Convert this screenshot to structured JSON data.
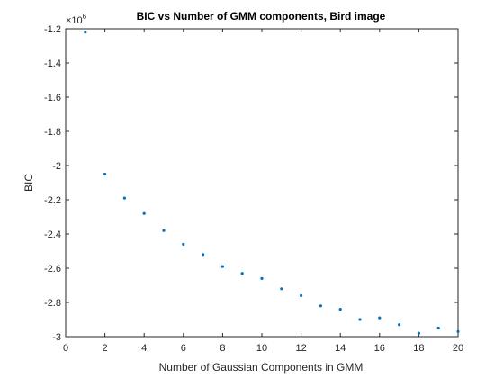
{
  "chart_data": {
    "type": "scatter",
    "title": "BIC vs Number of GMM components, Bird image",
    "xlabel": "Number of Gaussian Components in GMM",
    "ylabel": "BIC",
    "y_exponent": "×10",
    "y_exponent_power": "6",
    "xlim": [
      0,
      20
    ],
    "ylim": [
      -3.0,
      -1.2
    ],
    "xticks": [
      "0",
      "2",
      "4",
      "6",
      "8",
      "10",
      "12",
      "14",
      "16",
      "18",
      "20"
    ],
    "yticks": [
      "-3",
      "-2.8",
      "-2.6",
      "-2.4",
      "-2.2",
      "-2",
      "-1.8",
      "-1.6",
      "-1.4",
      "-1.2"
    ],
    "marker_color": "#0072bd",
    "grid": false,
    "x": [
      1,
      2,
      3,
      4,
      5,
      6,
      7,
      8,
      9,
      10,
      11,
      12,
      13,
      14,
      15,
      16,
      17,
      18,
      19,
      20
    ],
    "y": [
      -1.22,
      -2.05,
      -2.19,
      -2.28,
      -2.38,
      -2.46,
      -2.52,
      -2.59,
      -2.63,
      -2.66,
      -2.72,
      -2.76,
      -2.82,
      -2.84,
      -2.9,
      -2.89,
      -2.93,
      -2.98,
      -2.95,
      -2.97
    ]
  }
}
